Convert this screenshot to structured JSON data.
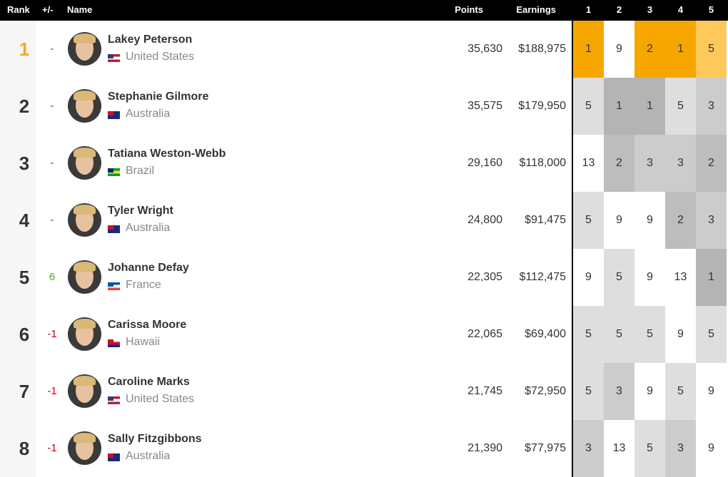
{
  "header": {
    "rank": "Rank",
    "change": "+/-",
    "name": "Name",
    "points": "Points",
    "earnings": "Earnings",
    "events": [
      "1",
      "2",
      "3",
      "4",
      "5"
    ]
  },
  "rows": [
    {
      "rank": "1",
      "change": "-",
      "name": "Lakey Peterson",
      "country": "United States",
      "points": "35,630",
      "earnings": "$188,975",
      "results": [
        "1",
        "9",
        "2",
        "1",
        "5"
      ],
      "result_colors": [
        "#f7a600",
        "#ffffff",
        "#f7a600",
        "#f7a600",
        "#fec95a"
      ],
      "rank_color": "#f5a623",
      "change_color": "#555555",
      "flag": [
        "#b22234",
        "#ffffff",
        "#b22234",
        "#3c3b6e"
      ]
    },
    {
      "rank": "2",
      "change": "-",
      "name": "Stephanie Gilmore",
      "country": "Australia",
      "points": "35,575",
      "earnings": "$179,950",
      "results": [
        "5",
        "1",
        "1",
        "5",
        "3"
      ],
      "result_colors": [
        "#dedede",
        "#b4b4b4",
        "#b4b4b4",
        "#dedede",
        "#cccccc"
      ],
      "rank_color": "#333333",
      "change_color": "#555555",
      "flag": [
        "#1a2a7a",
        "#1a2a7a",
        "#1a2a7a",
        "#c8102e"
      ]
    },
    {
      "rank": "3",
      "change": "-",
      "name": "Tatiana Weston-Webb",
      "country": "Brazil",
      "points": "29,160",
      "earnings": "$118,000",
      "results": [
        "13",
        "2",
        "3",
        "3",
        "2"
      ],
      "result_colors": [
        "#ffffff",
        "#bdbdbd",
        "#cccccc",
        "#cccccc",
        "#bdbdbd"
      ],
      "rank_color": "#333333",
      "change_color": "#555555",
      "flag": [
        "#009c3b",
        "#ffdf00",
        "#009c3b",
        "#002776"
      ]
    },
    {
      "rank": "4",
      "change": "-",
      "name": "Tyler Wright",
      "country": "Australia",
      "points": "24,800",
      "earnings": "$91,475",
      "results": [
        "5",
        "9",
        "9",
        "2",
        "3"
      ],
      "result_colors": [
        "#dedede",
        "#ffffff",
        "#ffffff",
        "#bdbdbd",
        "#cccccc"
      ],
      "rank_color": "#333333",
      "change_color": "#555555",
      "flag": [
        "#1a2a7a",
        "#1a2a7a",
        "#1a2a7a",
        "#c8102e"
      ]
    },
    {
      "rank": "5",
      "change": "6",
      "name": "Johanne Defay",
      "country": "France",
      "points": "22,305",
      "earnings": "$112,475",
      "results": [
        "9",
        "5",
        "9",
        "13",
        "1"
      ],
      "result_colors": [
        "#ffffff",
        "#dedede",
        "#ffffff",
        "#ffffff",
        "#b4b4b4"
      ],
      "rank_color": "#333333",
      "change_color": "#3cb521",
      "flag": [
        "#0055a4",
        "#ffffff",
        "#ef4135",
        "#0055a4"
      ]
    },
    {
      "rank": "6",
      "change": "-1",
      "name": "Carissa Moore",
      "country": "Hawaii",
      "points": "22,065",
      "earnings": "$69,400",
      "results": [
        "5",
        "5",
        "5",
        "9",
        "5"
      ],
      "result_colors": [
        "#dedede",
        "#dedede",
        "#dedede",
        "#ffffff",
        "#dedede"
      ],
      "rank_color": "#333333",
      "change_color": "#d0021b",
      "flag": [
        "#ffffff",
        "#c8102e",
        "#1a2a7a",
        "#c8102e"
      ]
    },
    {
      "rank": "7",
      "change": "-1",
      "name": "Caroline Marks",
      "country": "United States",
      "points": "21,745",
      "earnings": "$72,950",
      "results": [
        "5",
        "3",
        "9",
        "5",
        "9"
      ],
      "result_colors": [
        "#dedede",
        "#cccccc",
        "#ffffff",
        "#dedede",
        "#ffffff"
      ],
      "rank_color": "#333333",
      "change_color": "#d0021b",
      "flag": [
        "#b22234",
        "#ffffff",
        "#b22234",
        "#3c3b6e"
      ]
    },
    {
      "rank": "8",
      "change": "-1",
      "name": "Sally Fitzgibbons",
      "country": "Australia",
      "points": "21,390",
      "earnings": "$77,975",
      "results": [
        "3",
        "13",
        "5",
        "3",
        "9"
      ],
      "result_colors": [
        "#cccccc",
        "#ffffff",
        "#dedede",
        "#cccccc",
        "#ffffff"
      ],
      "rank_color": "#333333",
      "change_color": "#d0021b",
      "flag": [
        "#1a2a7a",
        "#1a2a7a",
        "#1a2a7a",
        "#c8102e"
      ]
    }
  ]
}
